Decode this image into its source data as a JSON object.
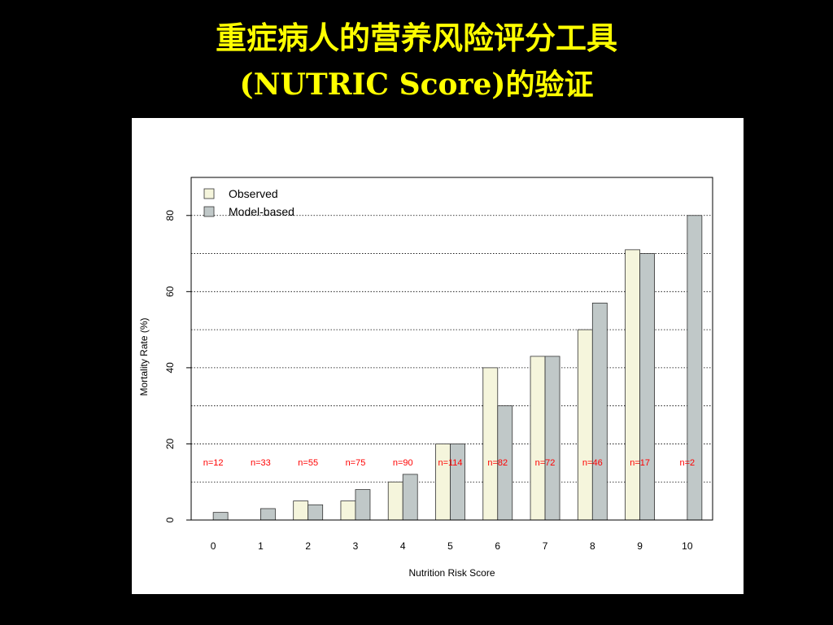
{
  "slide": {
    "title_line1": "重症病人的营养风险评分工具",
    "title_line2": "(NUTRIC Score)的验证"
  },
  "chart_data": {
    "type": "bar",
    "xlabel": "Nutrition Risk Score",
    "ylabel": "Mortality Rate (%)",
    "ylim": [
      0,
      90
    ],
    "yticks": [
      0,
      20,
      40,
      60,
      80
    ],
    "grid": true,
    "legend_position": "top-left",
    "categories": [
      "0",
      "1",
      "2",
      "3",
      "4",
      "5",
      "6",
      "7",
      "8",
      "9",
      "10"
    ],
    "series": [
      {
        "name": "Observed",
        "color": "#f5f5dc",
        "values": [
          0,
          0,
          5,
          5,
          10,
          20,
          40,
          43,
          50,
          71,
          0
        ]
      },
      {
        "name": "Model-based",
        "color": "#c0c8c8",
        "values": [
          2,
          3,
          4,
          8,
          12,
          20,
          30,
          43,
          57,
          70,
          80
        ]
      }
    ],
    "annotations": [
      "n=12",
      "n=33",
      "n=55",
      "n=75",
      "n=90",
      "n=114",
      "n=82",
      "n=72",
      "n=46",
      "n=17",
      "n=2"
    ],
    "annotation_color": "#ff0000"
  }
}
